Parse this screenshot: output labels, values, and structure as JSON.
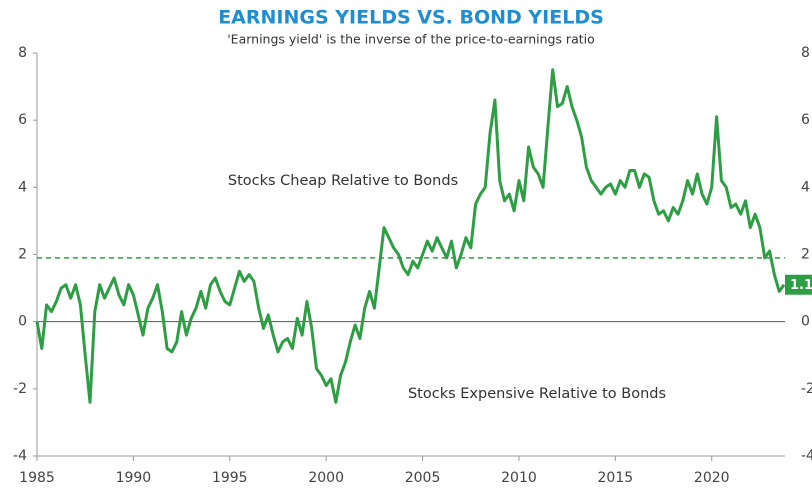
{
  "chart_data": {
    "type": "line",
    "title": "EARNINGS YIELDS VS. BOND YIELDS",
    "subtitle": "'Earnings yield' is the inverse of the price-to-earnings ratio",
    "annotations": [
      "Stocks Cheap Relative to Bonds",
      "Stocks Expensive Relative to Bonds"
    ],
    "x": [
      1985,
      1985.25,
      1985.5,
      1985.75,
      1986,
      1986.25,
      1986.5,
      1986.75,
      1987,
      1987.25,
      1987.5,
      1987.75,
      1988,
      1988.25,
      1988.5,
      1988.75,
      1989,
      1989.25,
      1989.5,
      1989.75,
      1990,
      1990.25,
      1990.5,
      1990.75,
      1991,
      1991.25,
      1991.5,
      1991.75,
      1992,
      1992.25,
      1992.5,
      1992.75,
      1993,
      1993.25,
      1993.5,
      1993.75,
      1994,
      1994.25,
      1994.5,
      1994.75,
      1995,
      1995.25,
      1995.5,
      1995.75,
      1996,
      1996.25,
      1996.5,
      1996.75,
      1997,
      1997.25,
      1997.5,
      1997.75,
      1998,
      1998.25,
      1998.5,
      1998.75,
      1999,
      1999.25,
      1999.5,
      1999.75,
      2000,
      2000.25,
      2000.5,
      2000.75,
      2001,
      2001.25,
      2001.5,
      2001.75,
      2002,
      2002.25,
      2002.5,
      2002.75,
      2003,
      2003.25,
      2003.5,
      2003.75,
      2004,
      2004.25,
      2004.5,
      2004.75,
      2005,
      2005.25,
      2005.5,
      2005.75,
      2006,
      2006.25,
      2006.5,
      2006.75,
      2007,
      2007.25,
      2007.5,
      2007.75,
      2008,
      2008.25,
      2008.5,
      2008.75,
      2009,
      2009.25,
      2009.5,
      2009.75,
      2010,
      2010.25,
      2010.5,
      2010.75,
      2011,
      2011.25,
      2011.5,
      2011.75,
      2012,
      2012.25,
      2012.5,
      2012.75,
      2013,
      2013.25,
      2013.5,
      2013.75,
      2014,
      2014.25,
      2014.5,
      2014.75,
      2015,
      2015.25,
      2015.5,
      2015.75,
      2016,
      2016.25,
      2016.5,
      2016.75,
      2017,
      2017.25,
      2017.5,
      2017.75,
      2018,
      2018.25,
      2018.5,
      2018.75,
      2019,
      2019.25,
      2019.5,
      2019.75,
      2020,
      2020.25,
      2020.5,
      2020.75,
      2021,
      2021.25,
      2021.5,
      2021.75,
      2022,
      2022.25,
      2022.5,
      2022.75,
      2023,
      2023.25,
      2023.5,
      2023.75
    ],
    "series": [
      {
        "color": "#2e9e44",
        "values": [
          0.0,
          -0.8,
          0.5,
          0.3,
          0.6,
          1.0,
          1.1,
          0.7,
          1.1,
          0.5,
          -1.0,
          -2.4,
          0.3,
          1.1,
          0.7,
          1.0,
          1.3,
          0.8,
          0.5,
          1.1,
          0.8,
          0.2,
          -0.4,
          0.4,
          0.7,
          1.1,
          0.3,
          -0.8,
          -0.9,
          -0.6,
          0.3,
          -0.4,
          0.1,
          0.4,
          0.9,
          0.4,
          1.1,
          1.3,
          0.9,
          0.6,
          0.5,
          1.0,
          1.5,
          1.2,
          1.4,
          1.2,
          0.4,
          -0.2,
          0.2,
          -0.4,
          -0.9,
          -0.6,
          -0.5,
          -0.8,
          0.1,
          -0.4,
          0.6,
          -0.2,
          -1.4,
          -1.6,
          -1.9,
          -1.7,
          -2.4,
          -1.6,
          -1.2,
          -0.6,
          -0.1,
          -0.5,
          0.4,
          0.9,
          0.4,
          1.6,
          2.8,
          2.5,
          2.2,
          2.0,
          1.6,
          1.4,
          1.8,
          1.6,
          2.0,
          2.4,
          2.1,
          2.5,
          2.2,
          1.9,
          2.4,
          1.6,
          2.0,
          2.5,
          2.2,
          3.5,
          3.8,
          4.0,
          5.6,
          6.6,
          4.2,
          3.6,
          3.8,
          3.3,
          4.2,
          3.6,
          5.2,
          4.6,
          4.4,
          4.0,
          5.8,
          7.5,
          6.4,
          6.5,
          7.0,
          6.4,
          6.0,
          5.5,
          4.6,
          4.2,
          4.0,
          3.8,
          4.0,
          4.1,
          3.8,
          4.2,
          4.0,
          4.5,
          4.5,
          4.0,
          4.4,
          4.3,
          3.6,
          3.2,
          3.3,
          3.0,
          3.4,
          3.2,
          3.6,
          4.2,
          3.8,
          4.4,
          3.8,
          3.5,
          4.0,
          6.1,
          4.2,
          4.0,
          3.4,
          3.5,
          3.2,
          3.6,
          2.8,
          3.2,
          2.8,
          1.9,
          2.1,
          1.4,
          0.9,
          1.1
        ]
      }
    ],
    "last_value_label": "1.1",
    "reference_line": {
      "value": 1.9,
      "color": "#2e9e44",
      "style": "dashed"
    },
    "xlim": [
      1985,
      2023.8
    ],
    "xticks": [
      1985,
      1990,
      1995,
      2000,
      2005,
      2010,
      2015,
      2020
    ],
    "ylim": [
      -4,
      8
    ],
    "yticks": [
      -4,
      -2,
      0,
      2,
      4,
      6,
      8
    ],
    "title_color": "#1f8dd0"
  }
}
